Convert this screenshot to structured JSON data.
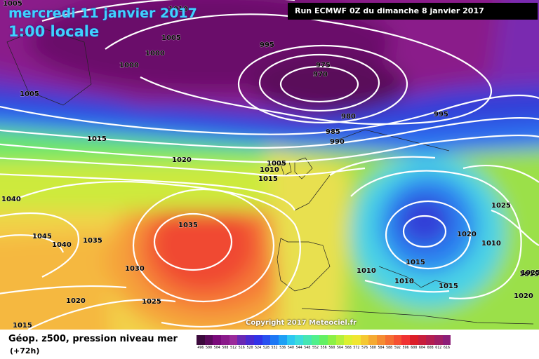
{
  "header": {
    "date": "mercredi 11 janvier 2017",
    "time": "1:00 locale",
    "run": "Run ECMWF 0Z du dimanche 8 janvier 2017"
  },
  "footer": {
    "variable": "Géop. z500, pression niveau mer",
    "step": "(+72h)",
    "copyright": "Copyright 2017 Meteociel.fr"
  },
  "isobar_labels": [
    "1005",
    "1010",
    "1005",
    "995",
    "1000",
    "1000",
    "1005",
    "975",
    "970",
    "980",
    "995",
    "985",
    "990",
    "1015",
    "1020",
    "1010",
    "1005",
    "1015",
    "1040",
    "1045",
    "1040",
    "1035",
    "1035",
    "1030",
    "1020",
    "1025",
    "1015",
    "1025",
    "1020",
    "1010",
    "1015",
    "1010",
    "1010",
    "1015",
    "1015",
    "1025",
    "1020"
  ],
  "scale": {
    "labels": [
      "496",
      "500",
      "504",
      "508",
      "512",
      "516",
      "520",
      "524",
      "528",
      "532",
      "536",
      "540",
      "544",
      "548",
      "552",
      "556",
      "560",
      "564",
      "568",
      "572",
      "576",
      "580",
      "584",
      "588",
      "592",
      "596",
      "600",
      "604",
      "608",
      "612",
      "616"
    ],
    "colors": [
      "#3c0a3c",
      "#5a0a5a",
      "#7a0a7a",
      "#8a1a8a",
      "#9a2a9a",
      "#6a28b4",
      "#4a2ad0",
      "#3232e6",
      "#2850f0",
      "#1e78f5",
      "#1ea0f5",
      "#2dc8f0",
      "#3cdcdc",
      "#46e6b4",
      "#50f08c",
      "#64f064",
      "#8cf046",
      "#b4f03c",
      "#dcf032",
      "#f0e632",
      "#f5c832",
      "#f5aa32",
      "#f58c32",
      "#f56e32",
      "#f55032",
      "#f03232",
      "#dc1e28",
      "#c81e3c",
      "#b41e50",
      "#a01e64",
      "#8c1e78"
    ]
  }
}
